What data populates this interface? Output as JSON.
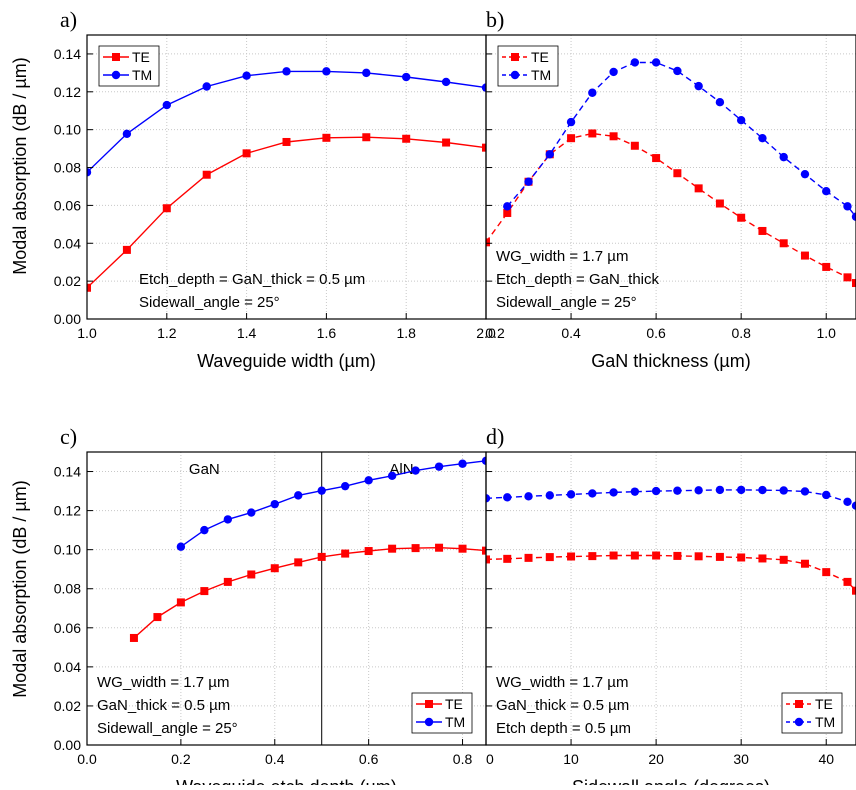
{
  "colors": {
    "TE": "#ff0000",
    "TM": "#0000ff",
    "axis": "#000000",
    "grid": "#c8c8c8",
    "frame": "#000000"
  },
  "ylabel_shared": "Modal absorption (dB / µm)",
  "chart_data": [
    {
      "panel": "a)",
      "type": "line",
      "xlabel": "Waveguide width (µm)",
      "xlim": [
        1.0,
        2.0
      ],
      "ylim": [
        0.0,
        0.15
      ],
      "xticks": [
        1.0,
        1.2,
        1.4,
        1.6,
        1.8,
        2.0
      ],
      "xtick_labels": [
        "1.0",
        "1.2",
        "1.4",
        "1.6",
        "1.8",
        "2.0"
      ],
      "yticks": [
        0.0,
        0.02,
        0.04,
        0.06,
        0.08,
        0.1,
        0.12,
        0.14
      ],
      "ytick_labels": [
        "0.00",
        "0.02",
        "0.04",
        "0.06",
        "0.08",
        "0.10",
        "0.12",
        "0.14"
      ],
      "grid": true,
      "dashed": false,
      "legend_position": "top-left",
      "annotations": [
        "Etch_depth = GaN_thick = 0.5 µm",
        "Sidewall_angle = 25°"
      ],
      "annotation_position": "bottom-center",
      "series": [
        {
          "name": "TE",
          "marker": "square",
          "x": [
            1.0,
            1.1,
            1.2,
            1.3,
            1.4,
            1.5,
            1.6,
            1.7,
            1.8,
            1.9,
            2.0
          ],
          "y": [
            0.0165,
            0.0365,
            0.0585,
            0.0762,
            0.0875,
            0.0935,
            0.0957,
            0.096,
            0.0952,
            0.0932,
            0.0905
          ]
        },
        {
          "name": "TM",
          "marker": "circle",
          "x": [
            1.0,
            1.1,
            1.2,
            1.3,
            1.4,
            1.5,
            1.6,
            1.7,
            1.8,
            1.9,
            2.0
          ],
          "y": [
            0.0775,
            0.0978,
            0.113,
            0.1228,
            0.1285,
            0.1308,
            0.1308,
            0.13,
            0.1278,
            0.1252,
            0.1222
          ]
        }
      ]
    },
    {
      "panel": "b)",
      "type": "line",
      "xlabel": "GaN thickness (µm)",
      "xlim": [
        0.2,
        1.07
      ],
      "ylim": [
        0.0,
        0.15
      ],
      "xticks": [
        0.4,
        0.6,
        0.8,
        1.0
      ],
      "xtick_labels": [
        "0.4",
        "0.6",
        "0.8",
        "1.0"
      ],
      "yticks": [
        0.0,
        0.02,
        0.04,
        0.06,
        0.08,
        0.1,
        0.12,
        0.14
      ],
      "ytick_labels": [],
      "corner_label": "0.2",
      "grid": true,
      "dashed": true,
      "legend_position": "top-left",
      "annotations": [
        "WG_width = 1.7 µm",
        "Etch_depth = GaN_thick",
        "Sidewall_angle = 25°"
      ],
      "annotation_position": "bottom-left",
      "series": [
        {
          "name": "TE",
          "marker": "square",
          "x": [
            0.2,
            0.25,
            0.3,
            0.35,
            0.4,
            0.45,
            0.5,
            0.55,
            0.6,
            0.65,
            0.7,
            0.75,
            0.8,
            0.85,
            0.9,
            0.95,
            1.0,
            1.05,
            1.07
          ],
          "y": [
            0.0405,
            0.056,
            0.0725,
            0.087,
            0.0955,
            0.098,
            0.0965,
            0.0915,
            0.085,
            0.077,
            0.069,
            0.061,
            0.0535,
            0.0465,
            0.04,
            0.0335,
            0.0275,
            0.022,
            0.019
          ]
        },
        {
          "name": "TM",
          "marker": "circle",
          "x": [
            0.25,
            0.3,
            0.35,
            0.4,
            0.45,
            0.5,
            0.55,
            0.6,
            0.65,
            0.7,
            0.75,
            0.8,
            0.85,
            0.9,
            0.95,
            1.0,
            1.05,
            1.07
          ],
          "y": [
            0.0595,
            0.0725,
            0.087,
            0.104,
            0.1195,
            0.1305,
            0.1355,
            0.1355,
            0.131,
            0.123,
            0.1145,
            0.105,
            0.0955,
            0.0855,
            0.0765,
            0.0675,
            0.0595,
            0.054
          ],
          "startMarker": false
        }
      ]
    },
    {
      "panel": "c)",
      "type": "line",
      "xlabel": "Waveguide etch depth (µm)",
      "xlim": [
        0.0,
        0.85
      ],
      "ylim": [
        0.0,
        0.15
      ],
      "xticks": [
        0.0,
        0.2,
        0.4,
        0.6,
        0.8
      ],
      "xtick_labels": [
        "0.0",
        "0.2",
        "0.4",
        "0.6",
        "0.8"
      ],
      "yticks": [
        0.0,
        0.02,
        0.04,
        0.06,
        0.08,
        0.1,
        0.12,
        0.14
      ],
      "ytick_labels": [
        "0.00",
        "0.02",
        "0.04",
        "0.06",
        "0.08",
        "0.10",
        "0.12",
        "0.14"
      ],
      "grid": true,
      "dashed": false,
      "legend_position": "bottom-right",
      "vline": 0.5,
      "region_labels": [
        {
          "text": "GaN",
          "x": 0.25
        },
        {
          "text": "AlN",
          "x": 0.67
        }
      ],
      "annotations": [
        "WG_width = 1.7 µm",
        "GaN_thick = 0.5 µm",
        "Sidewall_angle = 25°"
      ],
      "annotation_position": "bottom-left",
      "series": [
        {
          "name": "TE",
          "marker": "square",
          "x": [
            0.1,
            0.15,
            0.2,
            0.25,
            0.3,
            0.35,
            0.4,
            0.45,
            0.5,
            0.55,
            0.6,
            0.65,
            0.7,
            0.75,
            0.8,
            0.85
          ],
          "y": [
            0.0548,
            0.0655,
            0.073,
            0.0788,
            0.0835,
            0.0873,
            0.0905,
            0.0935,
            0.0963,
            0.098,
            0.0993,
            0.1005,
            0.1008,
            0.101,
            0.1005,
            0.0995
          ]
        },
        {
          "name": "TM",
          "marker": "circle",
          "x": [
            0.2,
            0.25,
            0.3,
            0.35,
            0.4,
            0.45,
            0.5,
            0.55,
            0.6,
            0.65,
            0.7,
            0.75,
            0.8,
            0.85
          ],
          "y": [
            0.1015,
            0.11,
            0.1155,
            0.119,
            0.1233,
            0.1278,
            0.1302,
            0.1325,
            0.1355,
            0.1378,
            0.1405,
            0.1425,
            0.144,
            0.1455
          ]
        }
      ]
    },
    {
      "panel": "d)",
      "type": "line",
      "xlabel": "Sidewall angle (degrees)",
      "xlim": [
        0,
        43.5
      ],
      "ylim": [
        0.0,
        0.15
      ],
      "xticks": [
        0,
        10,
        20,
        30,
        40
      ],
      "xtick_labels": [
        "0",
        "10",
        "20",
        "30",
        "40"
      ],
      "yticks": [
        0.0,
        0.02,
        0.04,
        0.06,
        0.08,
        0.1,
        0.12,
        0.14
      ],
      "ytick_labels": [],
      "grid": true,
      "dashed": true,
      "legend_position": "bottom-right",
      "annotations": [
        "WG_width = 1.7 µm",
        "GaN_thick = 0.5 µm",
        "Etch depth = 0.5 µm"
      ],
      "annotation_position": "bottom-left",
      "series": [
        {
          "name": "TE",
          "marker": "square",
          "x": [
            0,
            2.5,
            5,
            7.5,
            10,
            12.5,
            15,
            17.5,
            20,
            22.5,
            25,
            27.5,
            30,
            32.5,
            35,
            37.5,
            40,
            42.5,
            43.5
          ],
          "y": [
            0.095,
            0.0953,
            0.0958,
            0.0962,
            0.0965,
            0.0967,
            0.097,
            0.097,
            0.097,
            0.0968,
            0.0966,
            0.0963,
            0.096,
            0.0955,
            0.0948,
            0.0928,
            0.0885,
            0.0835,
            0.079
          ]
        },
        {
          "name": "TM",
          "marker": "circle",
          "x": [
            0,
            2.5,
            5,
            7.5,
            10,
            12.5,
            15,
            17.5,
            20,
            22.5,
            25,
            27.5,
            30,
            32.5,
            35,
            37.5,
            40,
            42.5,
            43.5
          ],
          "y": [
            0.1263,
            0.1268,
            0.1273,
            0.1278,
            0.1283,
            0.1288,
            0.1293,
            0.1297,
            0.13,
            0.1302,
            0.1304,
            0.1306,
            0.1306,
            0.1305,
            0.1303,
            0.1298,
            0.128,
            0.1245,
            0.1225
          ]
        }
      ]
    }
  ]
}
